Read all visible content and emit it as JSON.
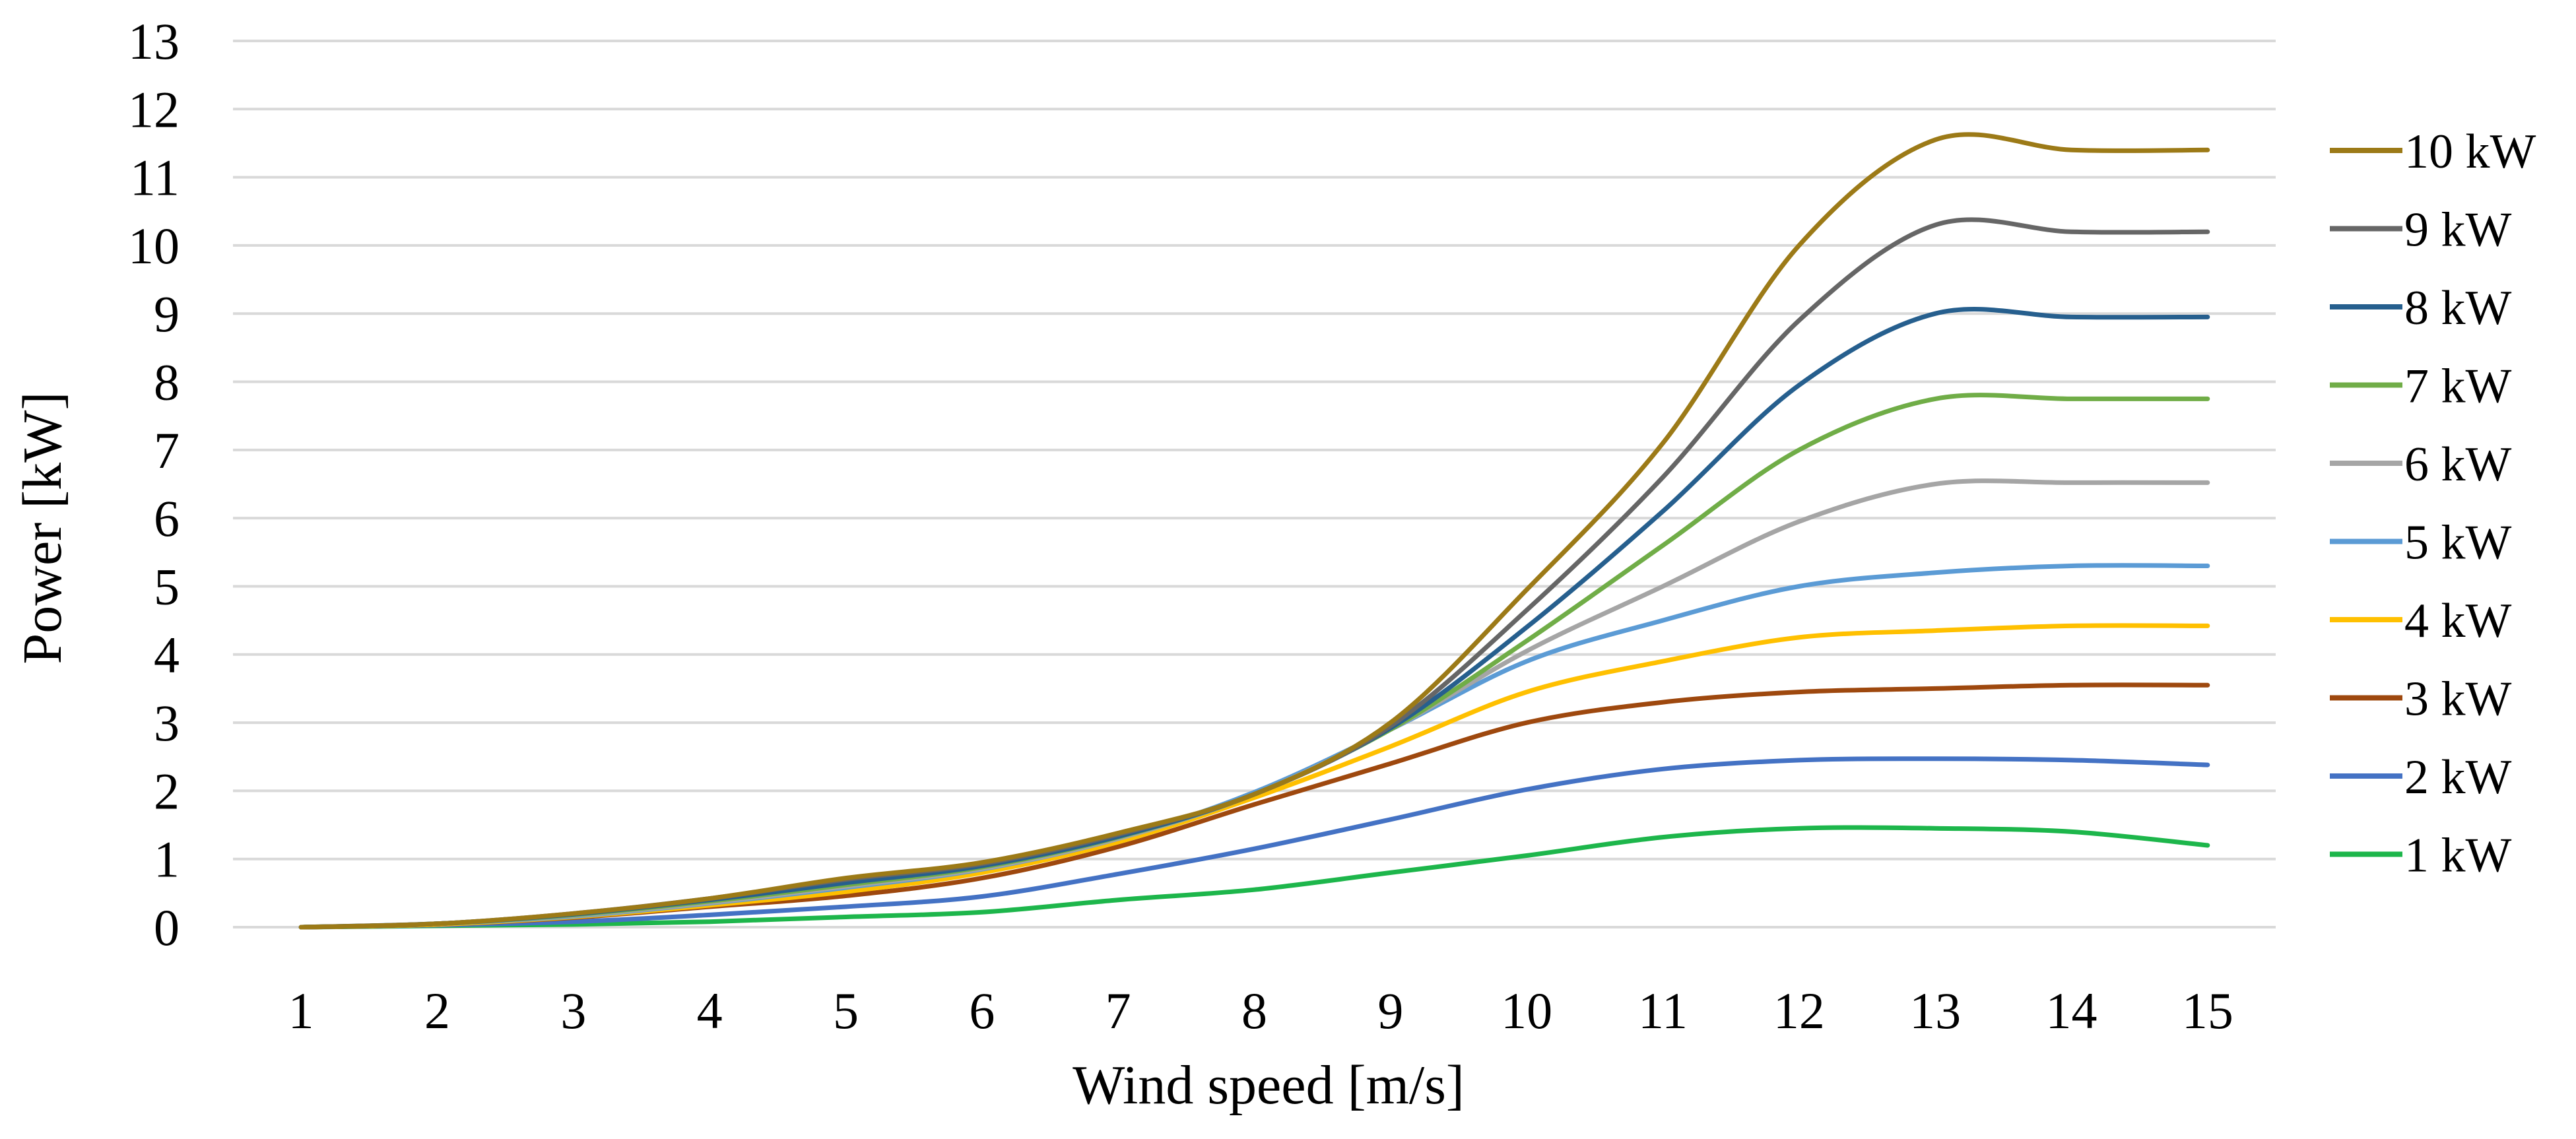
{
  "chart_data": {
    "type": "line",
    "title": "",
    "xlabel": "Wind speed [m/s]",
    "ylabel": "Power [kW]",
    "x": [
      1,
      2,
      3,
      4,
      5,
      6,
      7,
      8,
      9,
      10,
      11,
      12,
      13,
      14,
      15
    ],
    "xlim": [
      0.5,
      15.5
    ],
    "ylim": [
      0,
      13
    ],
    "yticks": [
      0,
      1,
      2,
      3,
      4,
      5,
      6,
      7,
      8,
      9,
      10,
      11,
      12,
      13
    ],
    "grid": true,
    "legend_position": "right",
    "series": [
      {
        "name": "10 kW",
        "color": "#9c7a17",
        "values": [
          0,
          0.05,
          0.2,
          0.42,
          0.72,
          0.95,
          1.38,
          1.95,
          3.0,
          4.95,
          7.1,
          10.0,
          11.55,
          11.4,
          11.4
        ]
      },
      {
        "name": "9 kW",
        "color": "#666666",
        "values": [
          0,
          0.05,
          0.2,
          0.42,
          0.7,
          0.93,
          1.36,
          1.95,
          2.95,
          4.65,
          6.6,
          8.9,
          10.3,
          10.2,
          10.2
        ]
      },
      {
        "name": "8 kW",
        "color": "#265f8e",
        "values": [
          0,
          0.05,
          0.19,
          0.4,
          0.65,
          0.9,
          1.33,
          1.95,
          2.92,
          4.4,
          6.1,
          7.95,
          9.0,
          8.95,
          8.95
        ]
      },
      {
        "name": "7 kW",
        "color": "#70ad47",
        "values": [
          0,
          0.05,
          0.18,
          0.38,
          0.62,
          0.88,
          1.32,
          1.95,
          2.9,
          4.2,
          5.6,
          7.0,
          7.75,
          7.75,
          7.75
        ]
      },
      {
        "name": "6 kW",
        "color": "#a5a5a5",
        "values": [
          0,
          0.05,
          0.17,
          0.36,
          0.6,
          0.86,
          1.3,
          1.95,
          2.9,
          4.05,
          5.0,
          5.95,
          6.5,
          6.52,
          6.52
        ]
      },
      {
        "name": "5 kW",
        "color": "#5b9bd5",
        "values": [
          0,
          0.05,
          0.16,
          0.35,
          0.58,
          0.85,
          1.3,
          1.98,
          2.9,
          3.9,
          4.5,
          5.0,
          5.2,
          5.3,
          5.3
        ]
      },
      {
        "name": "4 kW",
        "color": "#ffc000",
        "values": [
          0,
          0.04,
          0.15,
          0.32,
          0.52,
          0.8,
          1.25,
          1.9,
          2.65,
          3.45,
          3.9,
          4.25,
          4.35,
          4.42,
          4.42
        ]
      },
      {
        "name": "3 kW",
        "color": "#9e480e",
        "values": [
          0,
          0.04,
          0.14,
          0.3,
          0.46,
          0.72,
          1.18,
          1.8,
          2.4,
          3.0,
          3.3,
          3.45,
          3.5,
          3.55,
          3.55
        ]
      },
      {
        "name": "2 kW",
        "color": "#4472c4",
        "values": [
          0,
          0.03,
          0.08,
          0.18,
          0.3,
          0.45,
          0.78,
          1.15,
          1.58,
          2.02,
          2.32,
          2.45,
          2.47,
          2.45,
          2.38
        ]
      },
      {
        "name": "1 kW",
        "color": "#1db64b",
        "values": [
          0,
          0.02,
          0.04,
          0.08,
          0.15,
          0.22,
          0.4,
          0.55,
          0.8,
          1.05,
          1.32,
          1.45,
          1.45,
          1.4,
          1.2
        ]
      }
    ]
  }
}
